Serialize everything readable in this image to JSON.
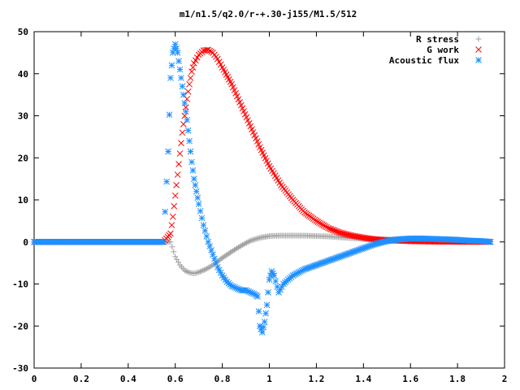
{
  "chart_data": {
    "type": "scatter",
    "title": "m1/n1.5/q2.0/r-+.30-j155/M1.5/512",
    "xlabel": "",
    "ylabel": "",
    "xlim": [
      0,
      2
    ],
    "ylim": [
      -30,
      50
    ],
    "xticks": [
      "0",
      "0.2",
      "0.4",
      "0.6",
      "0.8",
      "1",
      "1.2",
      "1.4",
      "1.6",
      "1.8",
      "2"
    ],
    "yticks": [
      "-30",
      "-20",
      "-10",
      "0",
      "10",
      "20",
      "30",
      "40",
      "50"
    ],
    "grid": false,
    "legend_position": "top-right",
    "series": [
      {
        "name": "R stress",
        "marker": "plus",
        "color": "#a0a0a0",
        "x": [
          0.0,
          0.05,
          0.1,
          0.15,
          0.2,
          0.25,
          0.3,
          0.35,
          0.4,
          0.45,
          0.5,
          0.55,
          0.58,
          0.6,
          0.62,
          0.64,
          0.66,
          0.68,
          0.7,
          0.73,
          0.76,
          0.8,
          0.84,
          0.88,
          0.92,
          0.96,
          1.0,
          1.05,
          1.1,
          1.15,
          1.2,
          1.25,
          1.3,
          1.35,
          1.4,
          1.45,
          1.5,
          1.55,
          1.6,
          1.65,
          1.7,
          1.75,
          1.8,
          1.85,
          1.9,
          1.94
        ],
        "y": [
          0,
          0,
          0,
          0,
          0,
          0,
          0,
          0,
          0,
          0,
          0,
          0,
          0,
          -3.5,
          -5.5,
          -6.8,
          -7.3,
          -7.5,
          -7.2,
          -6.5,
          -5.5,
          -3.8,
          -2.3,
          -0.9,
          0.3,
          1.0,
          1.4,
          1.5,
          1.5,
          1.5,
          1.4,
          1.3,
          1.1,
          0.9,
          0.7,
          0.6,
          0.6,
          0.7,
          0.8,
          0.8,
          0.7,
          0.6,
          0.5,
          0.3,
          0.2,
          0.1
        ]
      },
      {
        "name": "G work",
        "marker": "cross",
        "color": "#ff0000",
        "x": [
          0.0,
          0.05,
          0.1,
          0.15,
          0.2,
          0.25,
          0.3,
          0.35,
          0.4,
          0.45,
          0.5,
          0.55,
          0.58,
          0.59,
          0.6,
          0.61,
          0.62,
          0.63,
          0.64,
          0.65,
          0.66,
          0.67,
          0.68,
          0.7,
          0.72,
          0.74,
          0.76,
          0.78,
          0.8,
          0.84,
          0.88,
          0.92,
          0.96,
          1.0,
          1.05,
          1.1,
          1.15,
          1.2,
          1.25,
          1.3,
          1.35,
          1.4,
          1.45,
          1.5,
          1.55,
          1.6,
          1.7,
          1.8,
          1.9,
          1.94
        ],
        "y": [
          0,
          0,
          0,
          0,
          0,
          0,
          0,
          0,
          0,
          0,
          0,
          0,
          2,
          6,
          11,
          16,
          21,
          26,
          30,
          34,
          37.5,
          40.5,
          42.5,
          44.5,
          45.5,
          45.7,
          45.0,
          43.5,
          41.5,
          37.5,
          32.5,
          27.5,
          22.5,
          18.0,
          13.5,
          10.0,
          7.0,
          5.0,
          3.3,
          2.2,
          1.5,
          1.0,
          0.6,
          0.4,
          0.3,
          0.2,
          0.1,
          0.05,
          0.02,
          0.0
        ]
      },
      {
        "name": "Acoustic flux",
        "marker": "star",
        "color": "#1e90ff",
        "x": [
          0.0,
          0.05,
          0.1,
          0.15,
          0.2,
          0.25,
          0.3,
          0.35,
          0.4,
          0.45,
          0.5,
          0.55,
          0.57,
          0.58,
          0.59,
          0.6,
          0.61,
          0.62,
          0.63,
          0.64,
          0.65,
          0.66,
          0.67,
          0.68,
          0.69,
          0.7,
          0.72,
          0.74,
          0.76,
          0.78,
          0.8,
          0.82,
          0.84,
          0.86,
          0.88,
          0.9,
          0.92,
          0.94,
          0.95,
          0.96,
          0.97,
          0.98,
          0.99,
          1.0,
          1.01,
          1.02,
          1.04,
          1.06,
          1.08,
          1.1,
          1.15,
          1.2,
          1.25,
          1.3,
          1.35,
          1.4,
          1.45,
          1.5,
          1.55,
          1.6,
          1.65,
          1.7,
          1.75,
          1.8,
          1.85,
          1.9,
          1.94
        ],
        "y": [
          0,
          0,
          0,
          0,
          0,
          0,
          0,
          0,
          0,
          0,
          0,
          0,
          21.5,
          39,
          45,
          47,
          45,
          41,
          37,
          33,
          29,
          24,
          19,
          15,
          12,
          9,
          4,
          0,
          -3,
          -6,
          -8,
          -9.5,
          -10.5,
          -11,
          -11.5,
          -11.5,
          -12,
          -12.5,
          -13,
          -20,
          -21.5,
          -19,
          -15,
          -9,
          -7,
          -8,
          -12,
          -10,
          -9,
          -8,
          -6.5,
          -5.5,
          -4.5,
          -3.5,
          -2.5,
          -1.5,
          -0.5,
          0.2,
          0.6,
          0.8,
          0.8,
          0.7,
          0.6,
          0.5,
          0.3,
          0.2,
          0.0
        ]
      }
    ]
  }
}
